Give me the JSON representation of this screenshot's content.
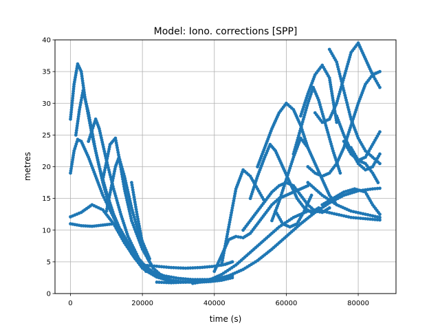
{
  "chart_data": {
    "type": "scatter",
    "title": "Model: Iono. corrections [SPP]",
    "xlabel": "time (s)",
    "ylabel": "metres",
    "xlim": [
      -4300,
      90500
    ],
    "ylim": [
      0,
      40
    ],
    "xticks": [
      0,
      20000,
      40000,
      60000,
      80000
    ],
    "yticks": [
      0,
      5,
      10,
      15,
      20,
      25,
      30,
      35,
      40
    ],
    "grid": true,
    "marker_color": "#1f77b4",
    "series": [
      {
        "x": [
          0,
          3000,
          6000,
          9000,
          12000,
          15000,
          18000,
          21000,
          24000,
          27000,
          30000,
          33000,
          36000,
          39000,
          42000,
          45000
        ],
        "y": [
          12.1,
          12.8,
          14.0,
          13.2,
          11.0,
          8.0,
          5.5,
          3.6,
          2.6,
          2.1,
          1.9,
          1.8,
          1.8,
          1.9,
          2.1,
          2.5
        ]
      },
      {
        "x": [
          0,
          3000,
          6000,
          9000,
          12000,
          14000,
          17000,
          20000,
          23000,
          26000,
          30000,
          34000,
          38000,
          42000,
          45000
        ],
        "y": [
          11.0,
          10.7,
          10.6,
          10.8,
          11.0,
          10.0,
          7.0,
          4.6,
          3.4,
          2.8,
          2.4,
          2.2,
          2.2,
          2.4,
          2.8
        ]
      },
      {
        "x": [
          0,
          1000,
          2000,
          3000,
          5000,
          7000,
          9000,
          12000,
          15000,
          18000,
          21000,
          24000,
          28000,
          32000
        ],
        "y": [
          19.0,
          22.5,
          24.3,
          24.0,
          21.5,
          18.5,
          15.5,
          12.0,
          8.8,
          6.0,
          4.0,
          2.8,
          2.1,
          1.8
        ]
      },
      {
        "x": [
          0,
          1000,
          2000,
          3000,
          4000,
          6000,
          8000,
          10000,
          12000,
          15000,
          18000,
          21000
        ],
        "y": [
          27.5,
          33.0,
          36.2,
          35.0,
          31.0,
          25.0,
          20.0,
          16.0,
          12.5,
          8.5,
          5.5,
          3.5
        ]
      },
      {
        "x": [
          1500,
          2500,
          3500,
          5000,
          7000,
          9000,
          11000,
          14000,
          17000,
          20000
        ],
        "y": [
          25.0,
          29.0,
          32.0,
          28.5,
          22.5,
          17.5,
          13.5,
          9.5,
          6.3,
          4.0
        ]
      },
      {
        "x": [
          5000,
          7000,
          8000,
          10000,
          12000,
          14000,
          16000,
          19000,
          22000
        ],
        "y": [
          24.0,
          27.5,
          26.0,
          21.0,
          16.5,
          12.5,
          9.0,
          5.5,
          3.5
        ]
      },
      {
        "x": [
          9000,
          11000,
          12500,
          13500,
          15000,
          17000,
          20000,
          23000
        ],
        "y": [
          18.0,
          23.5,
          24.5,
          21.5,
          16.5,
          11.5,
          7.0,
          4.0
        ]
      },
      {
        "x": [
          10000,
          12500,
          13500,
          15000,
          17000,
          19000,
          22000
        ],
        "y": [
          13.0,
          20.0,
          21.5,
          18.5,
          13.5,
          9.5,
          5.5
        ]
      },
      {
        "x": [
          17000,
          18500,
          20000,
          21500,
          23000,
          25000,
          27000
        ],
        "y": [
          17.5,
          12.5,
          8.0,
          5.5,
          4.0,
          3.0,
          2.4
        ]
      },
      {
        "x": [
          20000,
          24000,
          28000,
          32000,
          36000,
          40000,
          43000,
          45000
        ],
        "y": [
          4.5,
          4.3,
          4.1,
          4.0,
          4.1,
          4.3,
          4.6,
          5.0
        ]
      },
      {
        "x": [
          24000,
          28000,
          32000,
          36000,
          40000,
          44000,
          48000,
          52000,
          56000,
          60000,
          64000,
          68000,
          72000,
          76000,
          80000,
          84000,
          86000
        ],
        "y": [
          1.8,
          1.7,
          1.8,
          1.9,
          2.2,
          2.8,
          3.8,
          5.2,
          7.0,
          9.0,
          11.0,
          12.8,
          14.3,
          15.5,
          16.2,
          16.5,
          16.6
        ]
      },
      {
        "x": [
          34000,
          38000,
          42000,
          46000,
          50000,
          54000,
          58000,
          62000,
          66000,
          70000,
          74000,
          78000,
          82000,
          86000
        ],
        "y": [
          1.6,
          2.0,
          3.0,
          4.5,
          6.5,
          8.5,
          10.5,
          12.0,
          13.0,
          13.0,
          12.5,
          12.0,
          11.8,
          11.6
        ]
      },
      {
        "x": [
          40000,
          42000,
          44000,
          46000,
          48000,
          50000,
          52000,
          54000,
          56000,
          58000,
          60000,
          62000,
          64000,
          66000
        ],
        "y": [
          3.5,
          6.0,
          8.5,
          9.0,
          8.8,
          9.5,
          11.0,
          12.5,
          14.0,
          15.0,
          15.5,
          16.0,
          16.5,
          17.0
        ]
      },
      {
        "x": [
          42000,
          43000,
          44000,
          45000,
          46000,
          48000,
          50000,
          52000,
          54000
        ],
        "y": [
          4.5,
          7.5,
          10.5,
          13.5,
          16.5,
          19.5,
          18.5,
          16.5,
          14.5
        ]
      },
      {
        "x": [
          48000,
          50000,
          52000,
          54000,
          56000,
          58000,
          60000,
          62000,
          64000,
          66000,
          68000,
          70000,
          72000
        ],
        "y": [
          10.0,
          11.5,
          13.0,
          14.5,
          16.0,
          17.0,
          17.5,
          17.0,
          15.5,
          14.0,
          13.0,
          12.8,
          13.5
        ]
      },
      {
        "x": [
          50000,
          52000,
          54000,
          55500,
          57000,
          59000,
          61000,
          63000,
          65000,
          67000,
          69000
        ],
        "y": [
          15.0,
          18.5,
          21.5,
          23.5,
          22.5,
          20.0,
          17.5,
          15.0,
          13.5,
          12.8,
          13.5
        ]
      },
      {
        "x": [
          56000,
          58000,
          60000,
          62000,
          64000,
          66000,
          68000,
          70000,
          72000,
          74000
        ],
        "y": [
          11.5,
          14.5,
          18.0,
          21.5,
          24.5,
          23.0,
          20.5,
          18.0,
          15.5,
          14.0
        ]
      },
      {
        "x": [
          57000,
          59000,
          61000,
          63000,
          65000,
          67000
        ],
        "y": [
          13.0,
          11.0,
          10.5,
          11.0,
          13.0,
          15.5
        ]
      },
      {
        "x": [
          52000,
          54000,
          56000,
          58000,
          60000,
          62000,
          64000,
          66000
        ],
        "y": [
          20.0,
          23.0,
          26.0,
          28.5,
          30.0,
          29.0,
          26.5,
          23.0
        ]
      },
      {
        "x": [
          62000,
          64000,
          66000,
          67500,
          69000,
          71000,
          73000,
          75000
        ],
        "y": [
          22.0,
          26.0,
          30.0,
          32.5,
          30.5,
          26.5,
          22.5,
          19.0
        ]
      },
      {
        "x": [
          64000,
          66000,
          68000,
          70000,
          72000,
          73000,
          74000
        ],
        "y": [
          28.0,
          31.5,
          34.5,
          36.0,
          34.0,
          30.5,
          27.0
        ]
      },
      {
        "x": [
          68000,
          70000,
          72000,
          74000,
          76000,
          78000,
          80000,
          82000,
          84000,
          86000
        ],
        "y": [
          28.5,
          27.0,
          27.5,
          30.0,
          34.0,
          38.0,
          39.5,
          37.0,
          34.5,
          32.5
        ]
      },
      {
        "x": [
          66000,
          68000,
          70000,
          72000,
          74000,
          76000,
          78000,
          80000,
          82000,
          84000,
          86000
        ],
        "y": [
          20.0,
          19.0,
          18.5,
          19.0,
          20.5,
          23.0,
          26.5,
          30.0,
          33.0,
          34.5,
          35.0
        ]
      },
      {
        "x": [
          72000,
          74000,
          76000,
          78000,
          80000,
          82000,
          84000,
          86000
        ],
        "y": [
          38.5,
          36.5,
          32.0,
          27.5,
          24.5,
          22.5,
          21.5,
          20.5
        ]
      },
      {
        "x": [
          74000,
          76000,
          78000,
          80000,
          82000,
          84000,
          86000
        ],
        "y": [
          28.0,
          25.0,
          22.5,
          20.5,
          19.5,
          20.0,
          22.0
        ]
      },
      {
        "x": [
          76000,
          78000,
          80000,
          82000,
          84000,
          86000
        ],
        "y": [
          24.0,
          22.0,
          21.0,
          21.5,
          23.5,
          25.5
        ]
      },
      {
        "x": [
          78000,
          80000,
          82000,
          84000,
          85500
        ],
        "y": [
          23.0,
          21.0,
          20.5,
          19.0,
          17.5
        ]
      },
      {
        "x": [
          66000,
          70000,
          74000,
          78000,
          82000,
          86000
        ],
        "y": [
          17.5,
          15.5,
          14.0,
          13.0,
          12.5,
          12.0
        ]
      },
      {
        "x": [
          70000,
          73000,
          76000,
          79000,
          82000,
          84000,
          86000
        ],
        "y": [
          14.0,
          15.0,
          16.0,
          16.5,
          16.0,
          14.0,
          12.5
        ]
      }
    ]
  }
}
